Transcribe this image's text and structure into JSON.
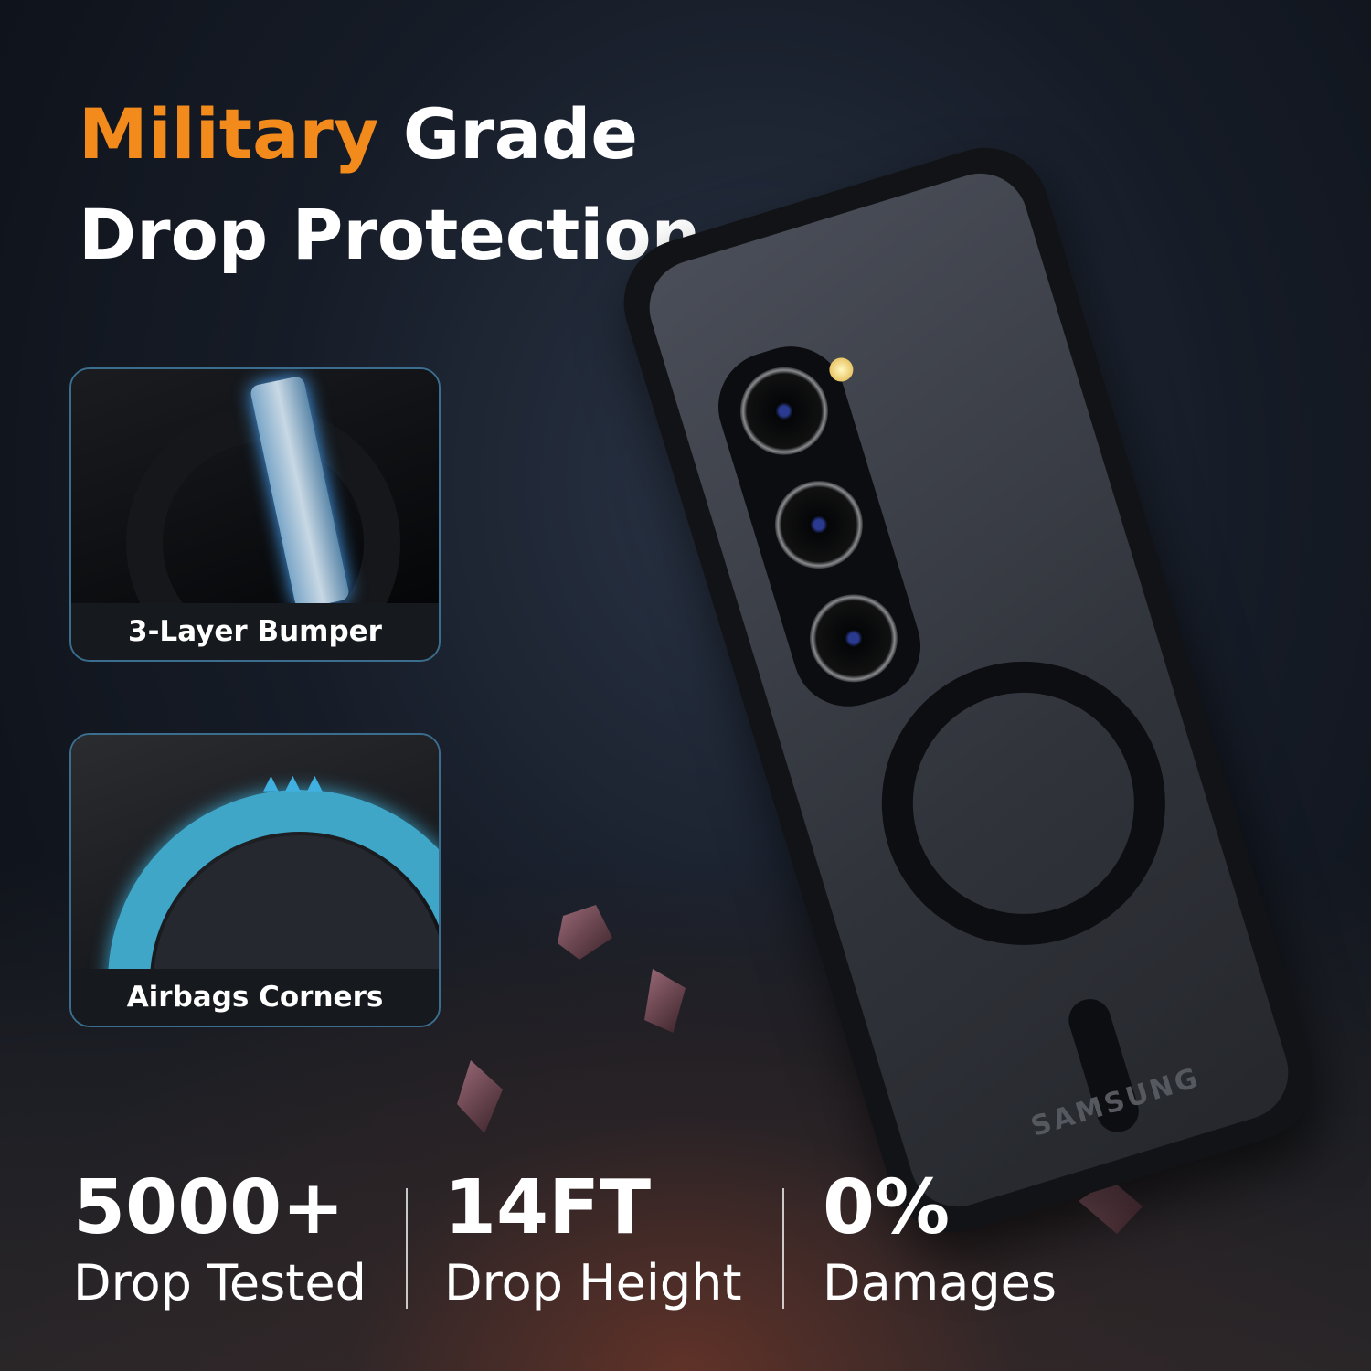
{
  "headline": {
    "line1_accent": "Military",
    "line1_rest": " Grade",
    "line2": "Drop Protection",
    "accent_color": "#f28a1c"
  },
  "features": [
    {
      "label": "3-Layer Bumper",
      "icon": "bumper-layers-image"
    },
    {
      "label": "Airbags Corners",
      "icon": "airbag-corner-image"
    }
  ],
  "product": {
    "brand_text": "SAMSUNG",
    "color": "black"
  },
  "stats": [
    {
      "value": "5000+",
      "caption": "Drop Tested"
    },
    {
      "value": "14FT",
      "caption": "Drop Height"
    },
    {
      "value": "0%",
      "caption": "Damages"
    }
  ]
}
